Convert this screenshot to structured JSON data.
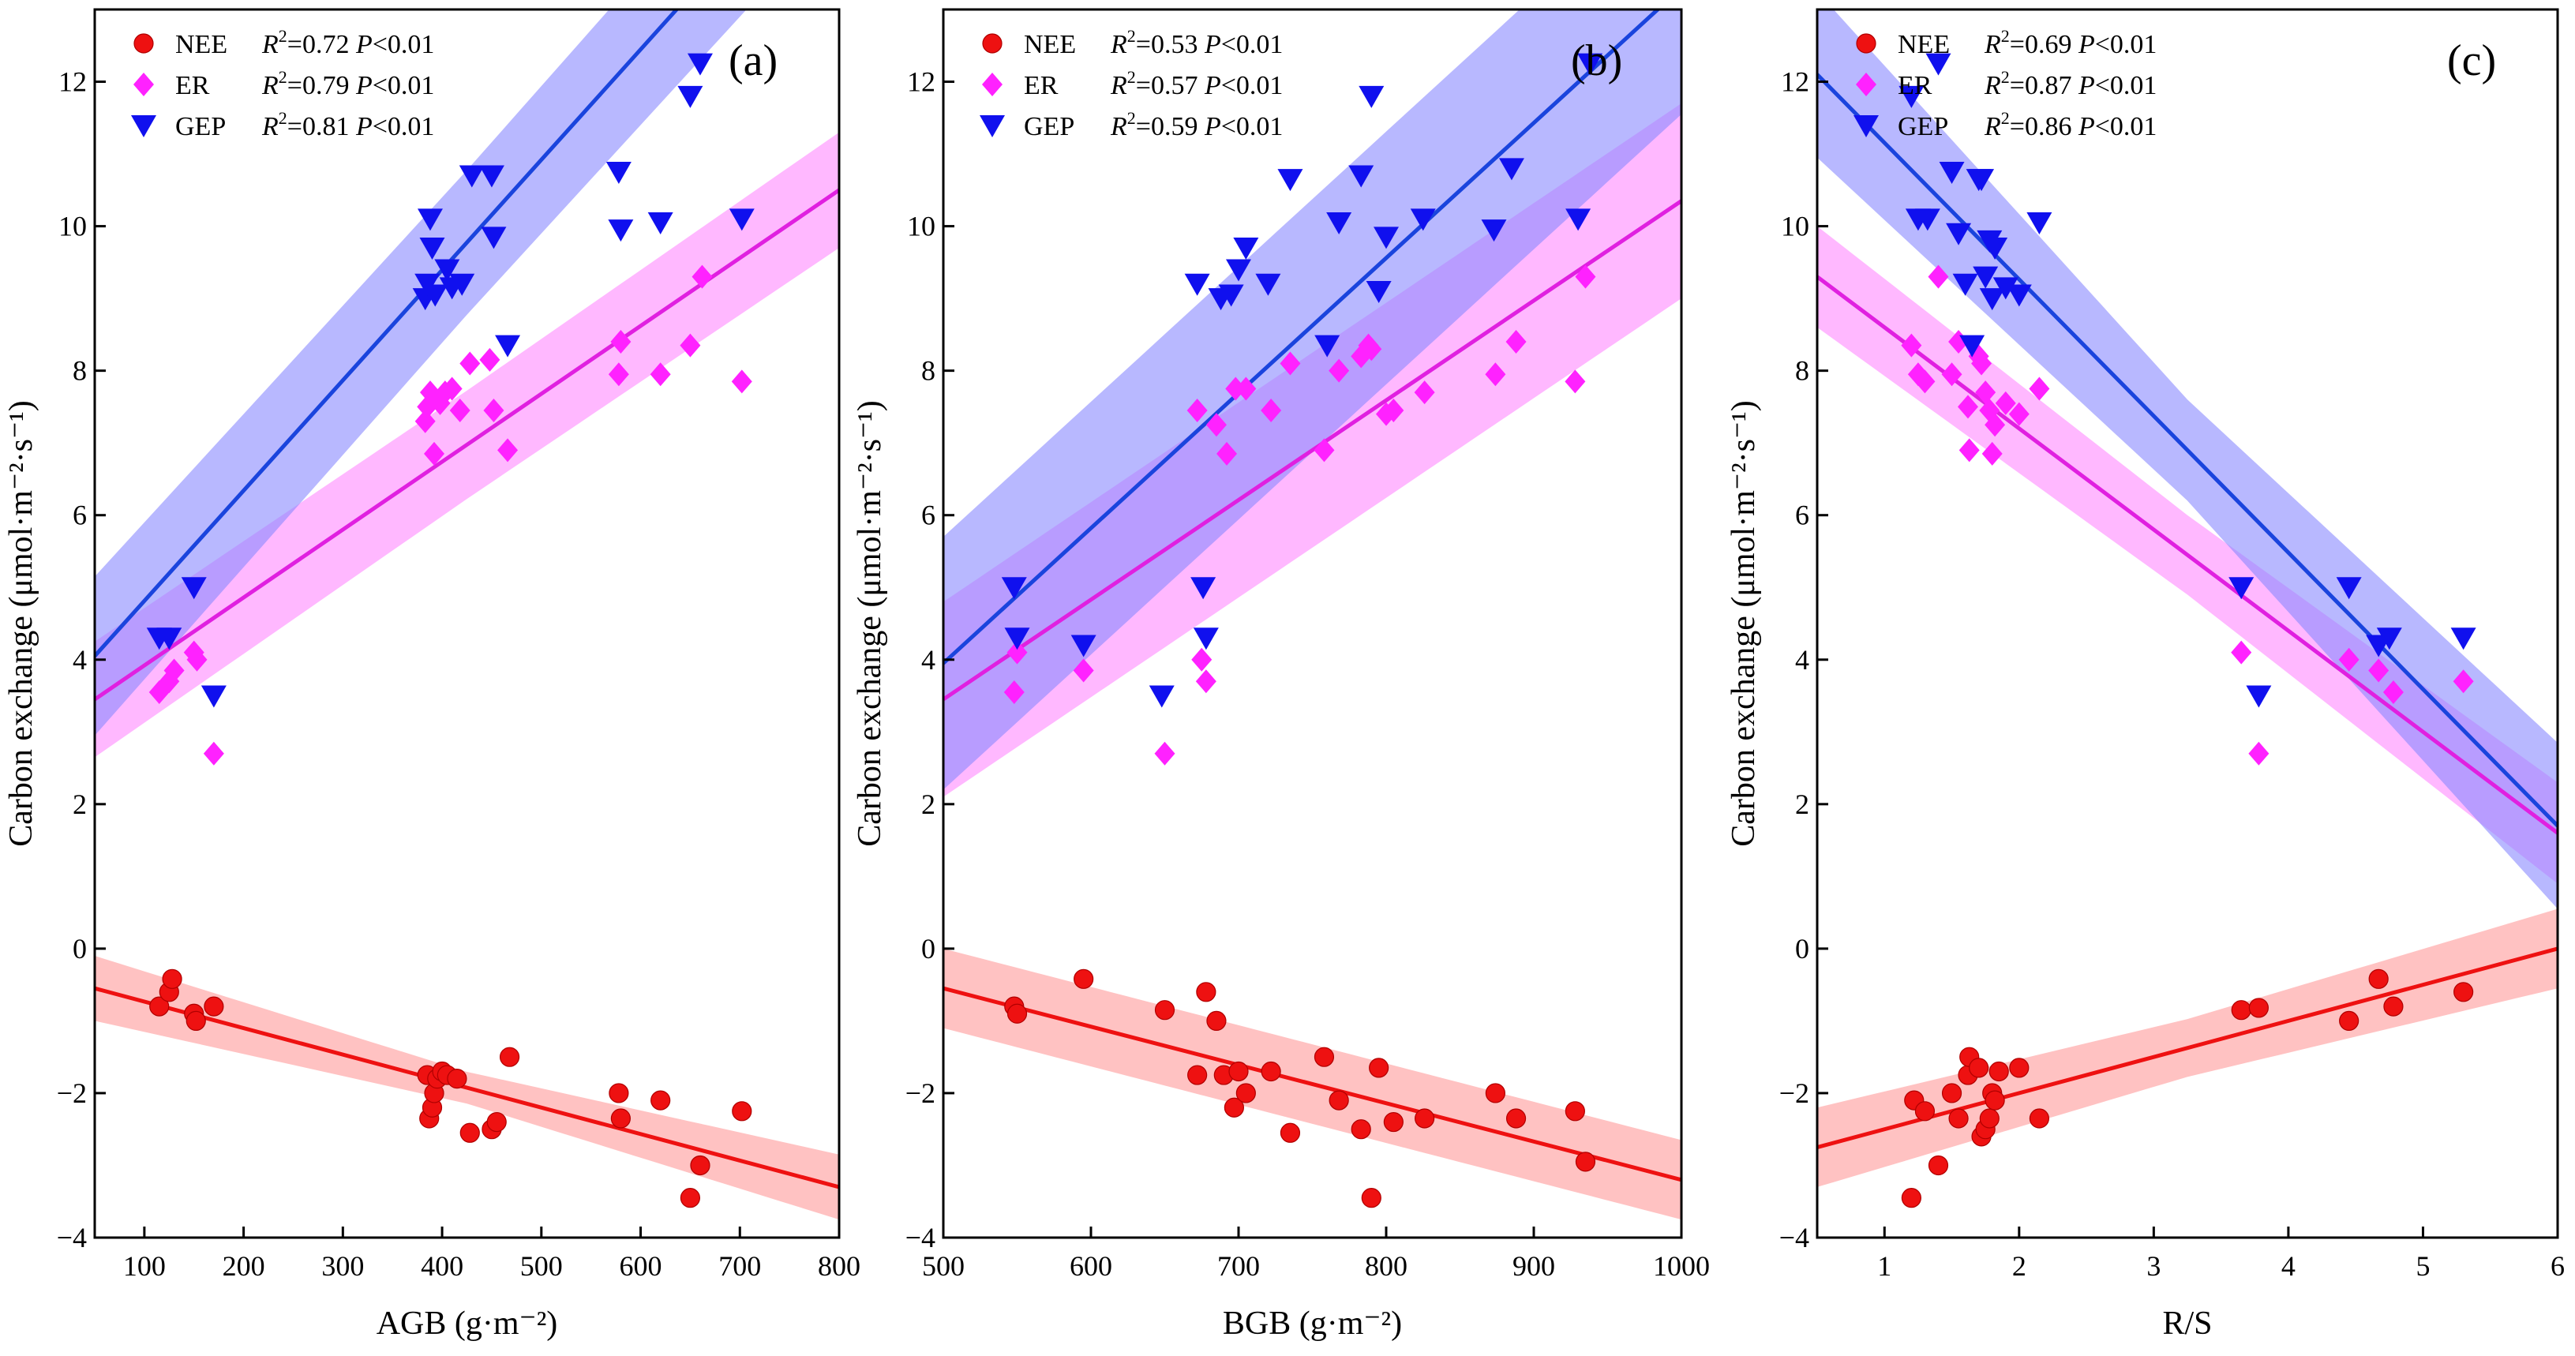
{
  "chart_data": [
    {
      "type": "scatter",
      "panel_label": "(a)",
      "xlabel": "AGB (g·m⁻²)",
      "ylabel": "Carbon exchange (μmol·m⁻²·s⁻¹)",
      "xlim": [
        50,
        800
      ],
      "ylim": [
        -4,
        13
      ],
      "xticks": [
        100,
        200,
        300,
        400,
        500,
        600,
        700,
        800
      ],
      "yticks": [
        -4,
        -2,
        0,
        2,
        4,
        6,
        8,
        10,
        12
      ],
      "series": [
        {
          "name": "NEE",
          "r2": "0.72",
          "p": "<0.01",
          "color": "#ee1111",
          "marker": "circle",
          "fit": [
            [
              50,
              -0.55
            ],
            [
              800,
              -3.3
            ]
          ],
          "band": [
            0.22,
            0.45
          ],
          "x": [
            115,
            125,
            128,
            150,
            152,
            170,
            385,
            387,
            390,
            392,
            395,
            400,
            405,
            415,
            428,
            450,
            455,
            468,
            578,
            580,
            620,
            650,
            660,
            702
          ],
          "y": [
            -0.8,
            -0.6,
            -0.42,
            -0.9,
            -1.0,
            -0.8,
            -1.75,
            -2.35,
            -2.2,
            -2.0,
            -1.8,
            -1.7,
            -1.75,
            -1.8,
            -2.55,
            -2.5,
            -2.4,
            -1.5,
            -2.0,
            -2.35,
            -2.1,
            -3.45,
            -3.0,
            -2.25
          ]
        },
        {
          "name": "ER",
          "r2": "0.79",
          "p": "<0.01",
          "color": "#ff22ff",
          "marker": "diamond",
          "fit": [
            [
              50,
              3.45
            ],
            [
              800,
              10.5
            ]
          ],
          "band": [
            0.75,
            0.8
          ],
          "x": [
            115,
            125,
            130,
            150,
            153,
            170,
            383,
            385,
            388,
            392,
            398,
            403,
            410,
            418,
            428,
            448,
            452,
            466,
            578,
            580,
            620,
            650,
            662,
            702
          ],
          "y": [
            3.55,
            3.7,
            3.85,
            4.1,
            4.0,
            2.7,
            7.3,
            7.5,
            7.7,
            6.85,
            7.55,
            7.7,
            7.75,
            7.45,
            8.1,
            8.15,
            7.45,
            6.9,
            7.95,
            8.4,
            7.95,
            8.35,
            9.3,
            7.85
          ]
        },
        {
          "name": "GEP",
          "r2": "0.81",
          "p": "<0.01",
          "color": "#1010ee",
          "marker": "triangle-down",
          "fit": [
            [
              50,
              4.05
            ],
            [
              800,
              15.5
            ]
          ],
          "band": [
            1.0,
            1.1
          ],
          "x": [
            115,
            125,
            150,
            170,
            383,
            385,
            388,
            390,
            393,
            405,
            410,
            420,
            430,
            450,
            452,
            466,
            578,
            580,
            620,
            650,
            660,
            702
          ],
          "y": [
            4.3,
            4.3,
            5.0,
            3.5,
            9.0,
            9.2,
            10.1,
            9.7,
            9.05,
            9.4,
            9.15,
            9.2,
            10.7,
            10.7,
            9.85,
            8.35,
            10.75,
            9.95,
            10.05,
            11.8,
            12.25,
            10.1
          ]
        }
      ]
    },
    {
      "type": "scatter",
      "panel_label": "(b)",
      "xlabel": "BGB (g·m⁻²)",
      "ylabel": "Carbon exchange (μmol·m⁻²·s⁻¹)",
      "xlim": [
        500,
        1000
      ],
      "ylim": [
        -4,
        13
      ],
      "xticks": [
        500,
        600,
        700,
        800,
        900,
        1000
      ],
      "yticks": [
        -4,
        -2,
        0,
        2,
        4,
        6,
        8,
        10,
        12
      ],
      "series": [
        {
          "name": "NEE",
          "r2": "0.53",
          "p": "<0.01",
          "color": "#ee1111",
          "marker": "circle",
          "fit": [
            [
              500,
              -0.55
            ],
            [
              1000,
              -3.2
            ]
          ],
          "band": [
            0.55,
            0.55
          ],
          "x": [
            548,
            550,
            595,
            650,
            672,
            678,
            685,
            690,
            697,
            700,
            705,
            722,
            735,
            758,
            768,
            783,
            790,
            795,
            805,
            826,
            874,
            888,
            928,
            935
          ],
          "y": [
            -0.8,
            -0.9,
            -0.42,
            -0.85,
            -1.75,
            -0.6,
            -1.0,
            -1.75,
            -2.2,
            -1.7,
            -2.0,
            -1.7,
            -2.55,
            -1.5,
            -2.1,
            -2.5,
            -3.45,
            -1.65,
            -2.4,
            -2.35,
            -2.0,
            -2.35,
            -2.25,
            -2.95
          ]
        },
        {
          "name": "ER",
          "r2": "0.57",
          "p": "<0.01",
          "color": "#ff22ff",
          "marker": "diamond",
          "fit": [
            [
              500,
              3.45
            ],
            [
              1000,
              10.35
            ]
          ],
          "band": [
            1.35,
            1.35
          ],
          "x": [
            548,
            550,
            595,
            650,
            672,
            675,
            678,
            685,
            692,
            698,
            705,
            722,
            735,
            758,
            768,
            783,
            788,
            790,
            800,
            805,
            826,
            874,
            888,
            928,
            935
          ],
          "y": [
            3.55,
            4.1,
            3.85,
            2.7,
            7.45,
            4.0,
            3.7,
            7.25,
            6.85,
            7.75,
            7.75,
            7.45,
            8.1,
            6.9,
            8.0,
            8.2,
            8.35,
            8.3,
            7.4,
            7.45,
            7.7,
            7.95,
            8.4,
            7.85,
            9.3
          ]
        },
        {
          "name": "GEP",
          "r2": "0.59",
          "p": "<0.01",
          "color": "#1010ee",
          "marker": "triangle-down",
          "fit": [
            [
              500,
              3.95
            ],
            [
              1000,
              13.3
            ]
          ],
          "band": [
            1.75,
            1.75
          ],
          "x": [
            548,
            550,
            595,
            648,
            672,
            676,
            678,
            688,
            695,
            700,
            705,
            720,
            735,
            760,
            768,
            783,
            790,
            795,
            800,
            825,
            873,
            885,
            930,
            938
          ],
          "y": [
            5.0,
            4.3,
            4.2,
            3.5,
            9.2,
            5.0,
            4.3,
            9.0,
            9.05,
            9.4,
            9.7,
            9.2,
            10.65,
            8.35,
            10.05,
            10.7,
            11.8,
            9.1,
            9.85,
            10.1,
            9.95,
            10.8,
            10.1,
            12.25
          ]
        }
      ]
    },
    {
      "type": "scatter",
      "panel_label": "(c)",
      "xlabel": "R/S",
      "ylabel": "Carbon exchange (μmol·m⁻²·s⁻¹)",
      "xlim": [
        0.5,
        6
      ],
      "ylim": [
        -4,
        13
      ],
      "xticks": [
        1,
        2,
        3,
        4,
        5,
        6
      ],
      "yticks": [
        -4,
        -2,
        0,
        2,
        4,
        6,
        8,
        10,
        12
      ],
      "series": [
        {
          "name": "NEE",
          "r2": "0.69",
          "p": "<0.01",
          "color": "#ee1111",
          "marker": "circle",
          "fit": [
            [
              0.5,
              -2.75
            ],
            [
              6,
              0.0
            ]
          ],
          "band": [
            0.4,
            0.55
          ],
          "x": [
            1.2,
            1.22,
            1.3,
            1.4,
            1.5,
            1.55,
            1.62,
            1.63,
            1.7,
            1.72,
            1.75,
            1.78,
            1.8,
            1.82,
            1.85,
            2.0,
            2.15,
            3.65,
            3.78,
            4.45,
            4.67,
            4.78,
            5.3
          ],
          "y": [
            -3.45,
            -2.1,
            -2.25,
            -3.0,
            -2.0,
            -2.35,
            -1.75,
            -1.5,
            -1.65,
            -2.6,
            -2.5,
            -2.35,
            -2.0,
            -2.1,
            -1.7,
            -1.65,
            -2.35,
            -0.85,
            -0.82,
            -1.0,
            -0.42,
            -0.8,
            -0.6
          ]
        },
        {
          "name": "ER",
          "r2": "0.87",
          "p": "<0.01",
          "color": "#ff22ff",
          "marker": "diamond",
          "fit": [
            [
              0.5,
              9.3
            ],
            [
              6,
              1.6
            ]
          ],
          "band": [
            0.55,
            0.7
          ],
          "x": [
            1.2,
            1.25,
            1.3,
            1.4,
            1.5,
            1.55,
            1.62,
            1.63,
            1.7,
            1.72,
            1.75,
            1.78,
            1.8,
            1.82,
            1.9,
            2.0,
            2.15,
            3.65,
            3.78,
            4.45,
            4.67,
            4.78,
            5.3
          ],
          "y": [
            8.35,
            7.95,
            7.85,
            9.3,
            7.95,
            8.4,
            7.5,
            6.9,
            8.2,
            8.1,
            7.7,
            7.45,
            6.85,
            7.25,
            7.55,
            7.4,
            7.75,
            4.1,
            2.7,
            4.0,
            3.85,
            3.55,
            3.7
          ]
        },
        {
          "name": "GEP",
          "r2": "0.86",
          "p": "<0.01",
          "color": "#1010ee",
          "marker": "triangle-down",
          "fit": [
            [
              0.5,
              12.1
            ],
            [
              6,
              1.7
            ]
          ],
          "band": [
            0.7,
            1.15
          ],
          "x": [
            1.2,
            1.25,
            1.32,
            1.4,
            1.5,
            1.55,
            1.6,
            1.65,
            1.7,
            1.72,
            1.75,
            1.78,
            1.8,
            1.82,
            1.9,
            2.0,
            2.15,
            3.65,
            3.78,
            4.45,
            4.67,
            4.75,
            5.3
          ],
          "y": [
            11.8,
            10.1,
            10.1,
            12.25,
            10.75,
            9.9,
            9.2,
            8.35,
            10.65,
            10.65,
            9.3,
            9.8,
            9.0,
            9.7,
            9.15,
            9.05,
            10.05,
            5.0,
            3.5,
            5.0,
            4.2,
            4.3,
            4.3
          ]
        }
      ]
    }
  ]
}
